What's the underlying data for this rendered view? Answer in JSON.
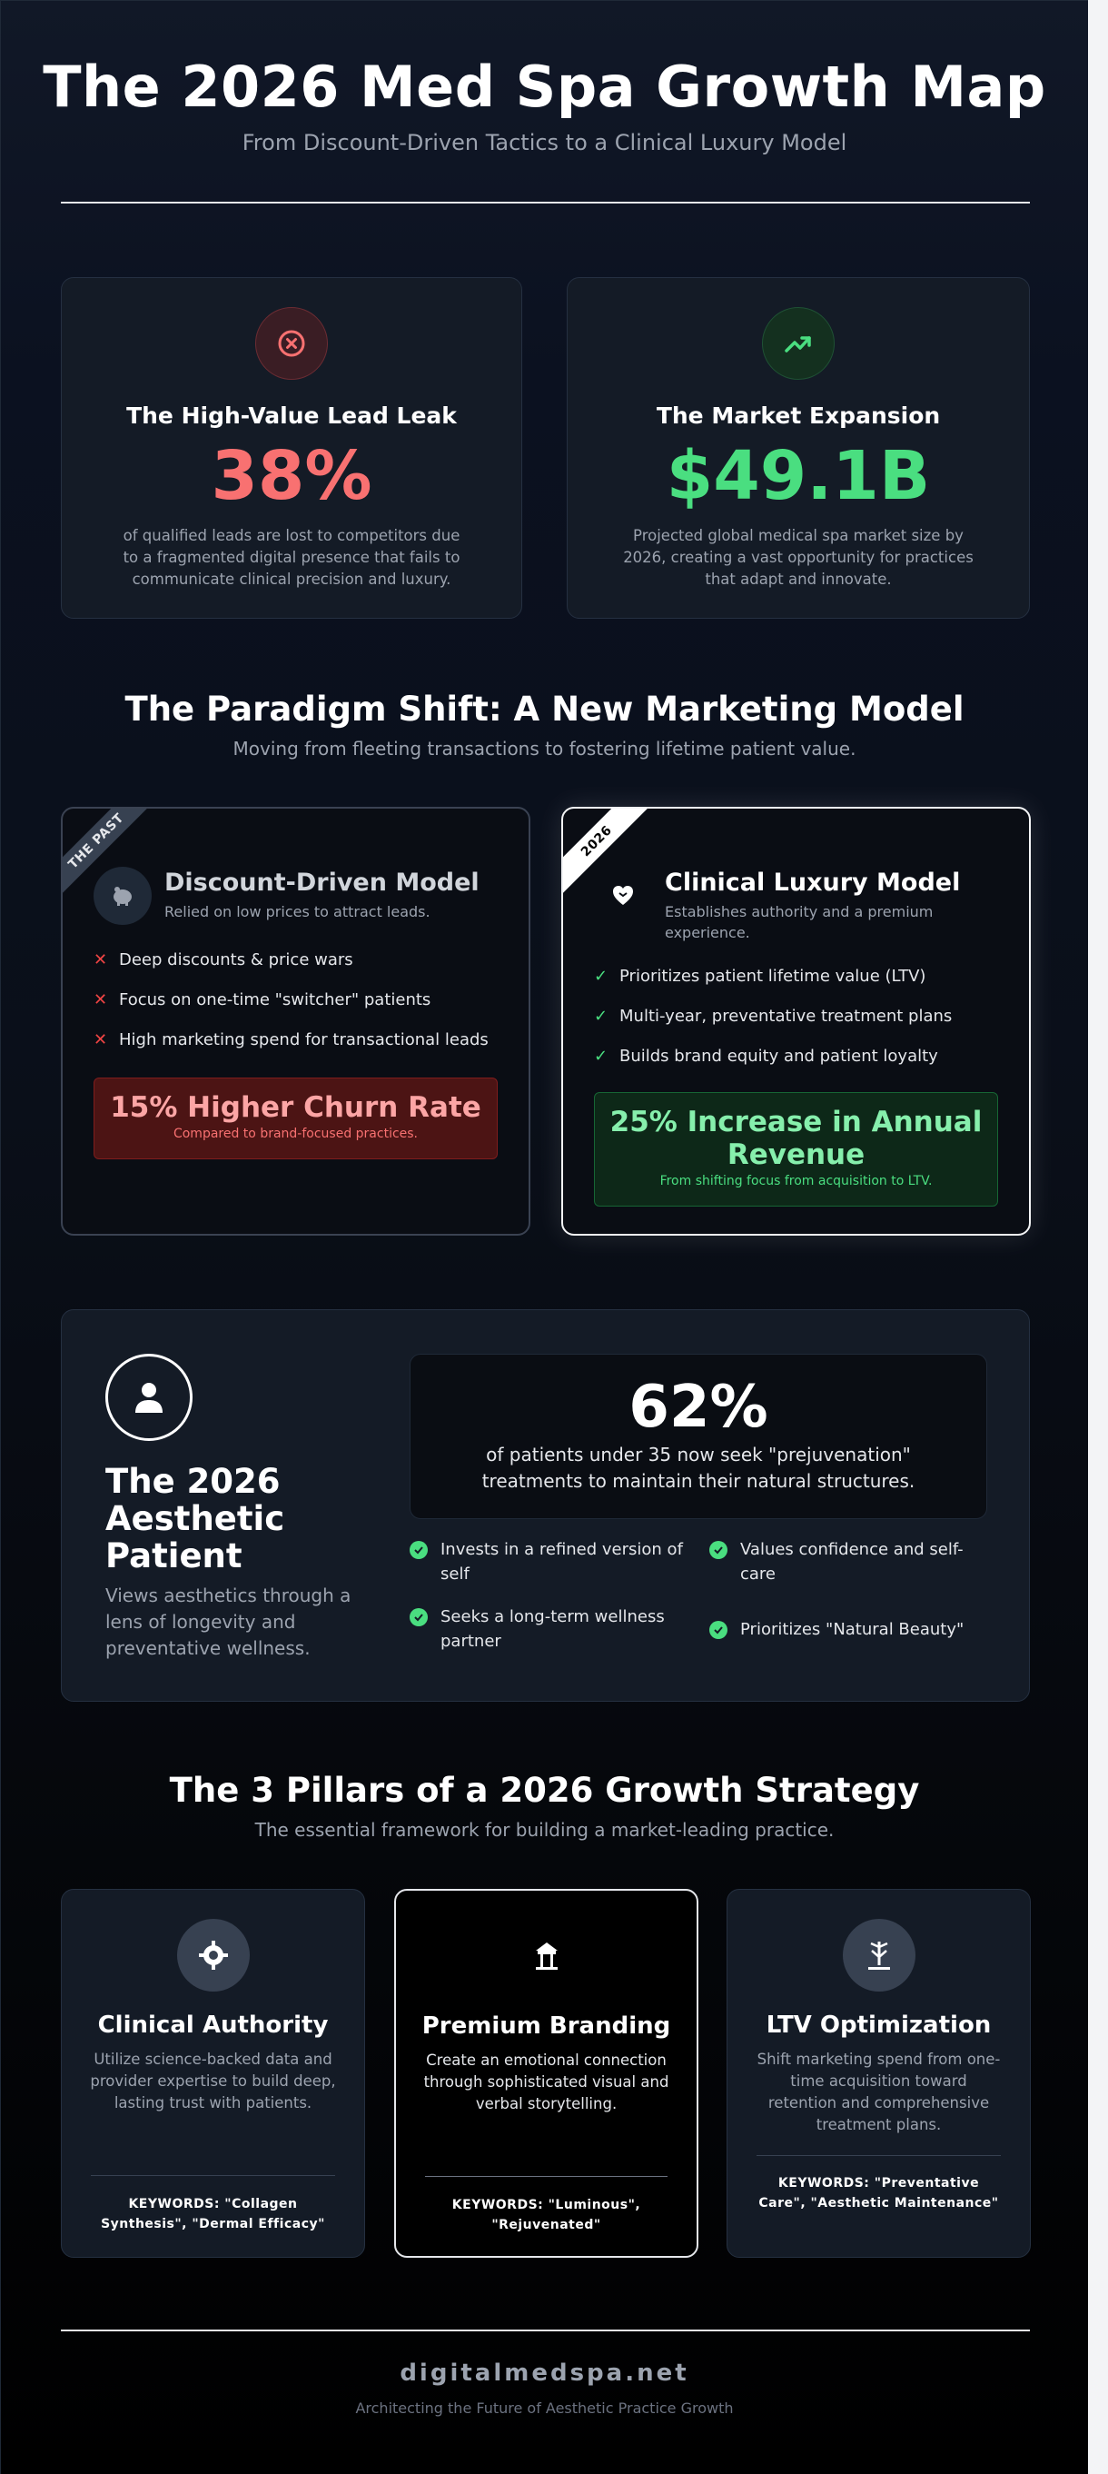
{
  "header": {
    "title": "The 2026 Med Spa Growth Map",
    "subtitle": "From Discount-Driven Tactics to a Clinical Luxury Model"
  },
  "stats": [
    {
      "icon": "x-circle-icon",
      "title": "The High-Value Lead Leak",
      "value": "38%",
      "description": "of qualified leads are lost to competitors due to a fragmented digital presence that fails to communicate clinical precision and luxury.",
      "accent": "#f87171"
    },
    {
      "icon": "trending-up-icon",
      "title": "The Market Expansion",
      "value": "$49.1B",
      "description": "Projected global medical spa market size by 2026, creating a vast opportunity for practices that adapt and innovate.",
      "accent": "#4ade80"
    }
  ],
  "paradigm": {
    "title": "The Paradigm Shift: A New Marketing Model",
    "subtitle": "Moving from fleeting transactions to fostering lifetime patient value.",
    "old_model": {
      "ribbon": "THE PAST",
      "icon": "piggy-bank-icon",
      "title": "Discount-Driven Model",
      "description": "Relied on low prices to attract leads.",
      "points": [
        "Deep discounts & price wars",
        "Focus on one-time \"switcher\" patients",
        "High marketing spend for transactional leads"
      ],
      "callout_value": "15% Higher Churn Rate",
      "callout_note": "Compared to brand-focused practices.",
      "accent": "#f87171"
    },
    "new_model": {
      "ribbon": "2026",
      "icon": "heart-hand-icon",
      "title": "Clinical Luxury Model",
      "description": "Establishes authority and a premium experience.",
      "points": [
        "Prioritizes patient lifetime value (LTV)",
        "Multi-year, preventative treatment plans",
        "Builds brand equity and patient loyalty"
      ],
      "callout_value": "25% Increase in Annual Revenue",
      "callout_note": "From shifting focus from acquisition to LTV.",
      "accent": "#4ade80"
    }
  },
  "patient": {
    "icon": "user-icon",
    "title": "The 2026 Aesthetic Patient",
    "description": "Views aesthetics through a lens of longevity and preventative wellness.",
    "stat_value": "62%",
    "stat_description": "of patients under 35 now seek \"prejuvenation\" treatments to maintain their natural structures.",
    "traits": [
      "Invests in a refined version of self",
      "Values confidence and self-care",
      "Seeks a long-term wellness partner",
      "Prioritizes \"Natural Beauty\""
    ]
  },
  "pillars": {
    "title": "The 3 Pillars of a 2026 Growth Strategy",
    "subtitle": "The essential framework for building a market-leading practice.",
    "items": [
      {
        "icon": "microscope-icon",
        "title": "Clinical Authority",
        "description": "Utilize science-backed data and provider expertise to build deep, lasting trust with patients.",
        "keywords": "KEYWORDS: \"Collagen Synthesis\", \"Dermal Efficacy\""
      },
      {
        "icon": "pavilion-icon",
        "title": "Premium Branding",
        "description": "Create an emotional connection through sophisticated visual and verbal storytelling.",
        "keywords": "KEYWORDS: \"Luminous\", \"Rejuvenated\""
      },
      {
        "icon": "balance-icon",
        "title": "LTV Optimization",
        "description": "Shift marketing spend from one-time acquisition toward retention and comprehensive treatment plans.",
        "keywords": "KEYWORDS: \"Preventative Care\", \"Aesthetic Maintenance\""
      }
    ]
  },
  "footer": {
    "brand": "digitalmedspa.net",
    "tagline": "Architecting the Future of Aesthetic Practice Growth"
  }
}
